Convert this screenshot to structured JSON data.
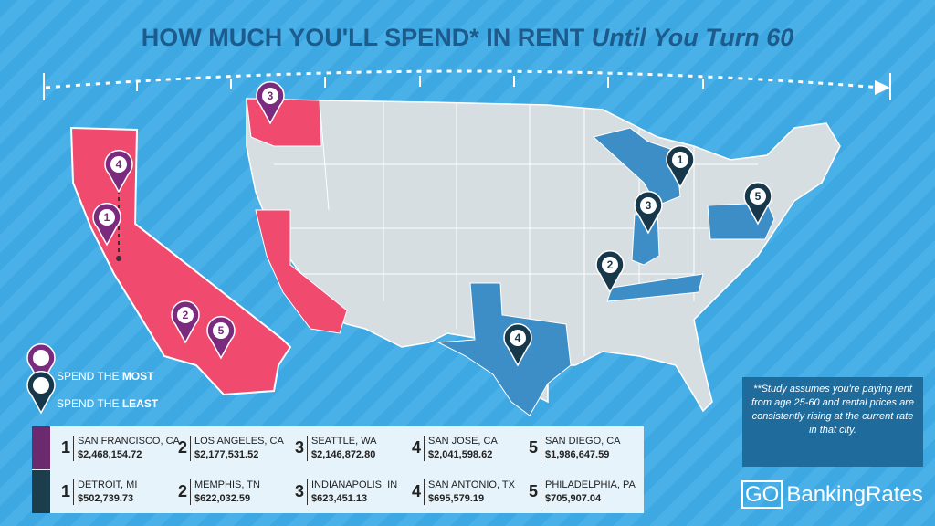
{
  "title": {
    "main": "HOW MUCH YOU'LL SPEND* IN RENT",
    "emphasis": "Until You Turn 60"
  },
  "legend": {
    "most": {
      "prefix": "SPEND THE",
      "word": "MOST"
    },
    "least": {
      "prefix": "SPEND THE",
      "word": "LEAST"
    }
  },
  "most": [
    {
      "rank": "1",
      "city": "SAN FRANCISCO, CA",
      "amount": "$2,468,154.72"
    },
    {
      "rank": "2",
      "city": "LOS ANGELES, CA",
      "amount": "$2,177,531.52"
    },
    {
      "rank": "3",
      "city": "SEATTLE, WA",
      "amount": "$2,146,872.80"
    },
    {
      "rank": "4",
      "city": "SAN JOSE, CA",
      "amount": "$2,041,598.62"
    },
    {
      "rank": "5",
      "city": "SAN DIEGO, CA",
      "amount": "$1,986,647.59"
    }
  ],
  "least": [
    {
      "rank": "1",
      "city": "DETROIT, MI",
      "amount": "$502,739.73"
    },
    {
      "rank": "2",
      "city": "MEMPHIS, TN",
      "amount": "$622,032.59"
    },
    {
      "rank": "3",
      "city": "INDIANAPOLIS, IN",
      "amount": "$623,451.13"
    },
    {
      "rank": "4",
      "city": "SAN ANTONIO, TX",
      "amount": "$695,579.19"
    },
    {
      "rank": "5",
      "city": "PHILADELPHIA, PA",
      "amount": "$705,907.04"
    }
  ],
  "pins_most": [
    "4",
    "1",
    "2",
    "5",
    "3"
  ],
  "pins_least": [
    "1",
    "3",
    "5",
    "2",
    "4"
  ],
  "note": "**Study assumes you're paying rent from age 25-60 and rental prices are consistently rising at the current rate in that city.",
  "brand": {
    "go": "GO",
    "name": "BankingRates"
  }
}
